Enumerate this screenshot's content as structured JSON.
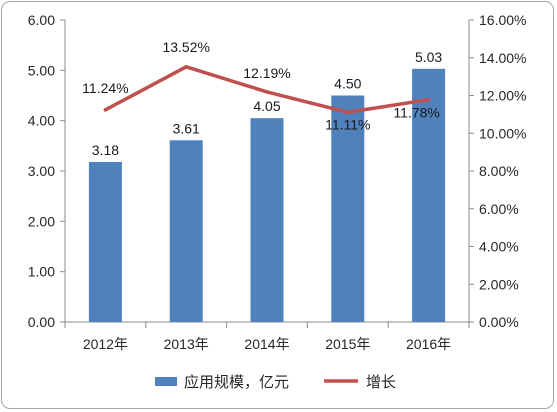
{
  "chart_data": {
    "type": "bar",
    "categories": [
      "2012年",
      "2013年",
      "2014年",
      "2015年",
      "2016年"
    ],
    "series": [
      {
        "name": "应用规模，亿元",
        "type": "bar",
        "axis": "left",
        "values": [
          3.18,
          3.61,
          4.05,
          4.5,
          5.03
        ],
        "labels": [
          "3.18",
          "3.61",
          "4.05",
          "4.50",
          "5.03"
        ],
        "color": "#4f81bd"
      },
      {
        "name": "增长",
        "type": "line",
        "axis": "right",
        "values": [
          11.24,
          13.52,
          12.19,
          11.11,
          11.78
        ],
        "labels": [
          "11.24%",
          "13.52%",
          "12.19%",
          "11.11%",
          "11.78%"
        ],
        "color": "#c0504d"
      }
    ],
    "left_axis": {
      "ylim": [
        0,
        6
      ],
      "ticks": [
        "0.00",
        "1.00",
        "2.00",
        "3.00",
        "4.00",
        "5.00",
        "6.00"
      ]
    },
    "right_axis": {
      "ylim": [
        0,
        16
      ],
      "ticks": [
        "0.00%",
        "2.00%",
        "4.00%",
        "6.00%",
        "8.00%",
        "10.00%",
        "12.00%",
        "14.00%",
        "16.00%"
      ]
    },
    "grid": false,
    "legend": "bottom"
  }
}
